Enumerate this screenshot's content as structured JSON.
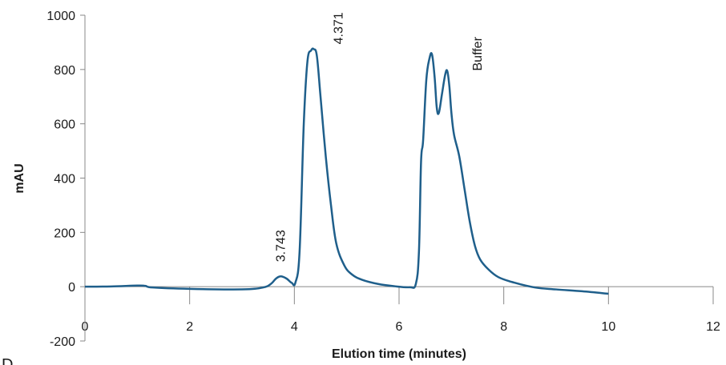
{
  "chart_data": {
    "type": "line",
    "title": "",
    "xlabel": "Elution time (minutes)",
    "ylabel": "mAU",
    "xlim": [
      0,
      12
    ],
    "ylim": [
      -200,
      1000
    ],
    "xticks": [
      0,
      2,
      4,
      6,
      8,
      10,
      12
    ],
    "yticks": [
      -200,
      0,
      200,
      400,
      600,
      800,
      1000
    ],
    "grid": false,
    "series": [
      {
        "color": "#1f5f8b",
        "x": [
          0,
          0.5,
          1.0,
          1.15,
          1.3,
          2.0,
          3.0,
          3.4,
          3.55,
          3.65,
          3.74,
          3.85,
          3.95,
          4.02,
          4.1,
          4.18,
          4.25,
          4.32,
          4.37,
          4.43,
          4.5,
          4.6,
          4.7,
          4.8,
          4.95,
          5.1,
          5.3,
          5.6,
          5.9,
          6.2,
          6.32,
          6.38,
          6.42,
          6.46,
          6.52,
          6.58,
          6.63,
          6.68,
          6.72,
          6.76,
          6.82,
          6.88,
          6.92,
          6.96,
          7.0,
          7.05,
          7.15,
          7.25,
          7.35,
          7.45,
          7.55,
          7.7,
          7.9,
          8.2,
          8.6,
          9.0,
          9.5,
          10.0
        ],
        "y": [
          0,
          1,
          4,
          3,
          -3,
          -8,
          -10,
          -3,
          10,
          30,
          38,
          30,
          14,
          15,
          130,
          600,
          830,
          870,
          875,
          850,
          700,
          480,
          300,
          160,
          80,
          45,
          25,
          10,
          2,
          -2,
          10,
          130,
          460,
          540,
          760,
          840,
          855,
          770,
          660,
          640,
          710,
          780,
          795,
          740,
          640,
          560,
          480,
          360,
          240,
          150,
          100,
          65,
          35,
          15,
          -3,
          -10,
          -17,
          -26
        ]
      }
    ],
    "annotations": [
      {
        "text": "3.743",
        "x": 3.743,
        "y": 38
      },
      {
        "text": "4.371",
        "x": 4.371,
        "y": 875
      },
      {
        "text": "Buffer",
        "x": 6.95,
        "y": 795
      }
    ],
    "panel_label": "D"
  }
}
